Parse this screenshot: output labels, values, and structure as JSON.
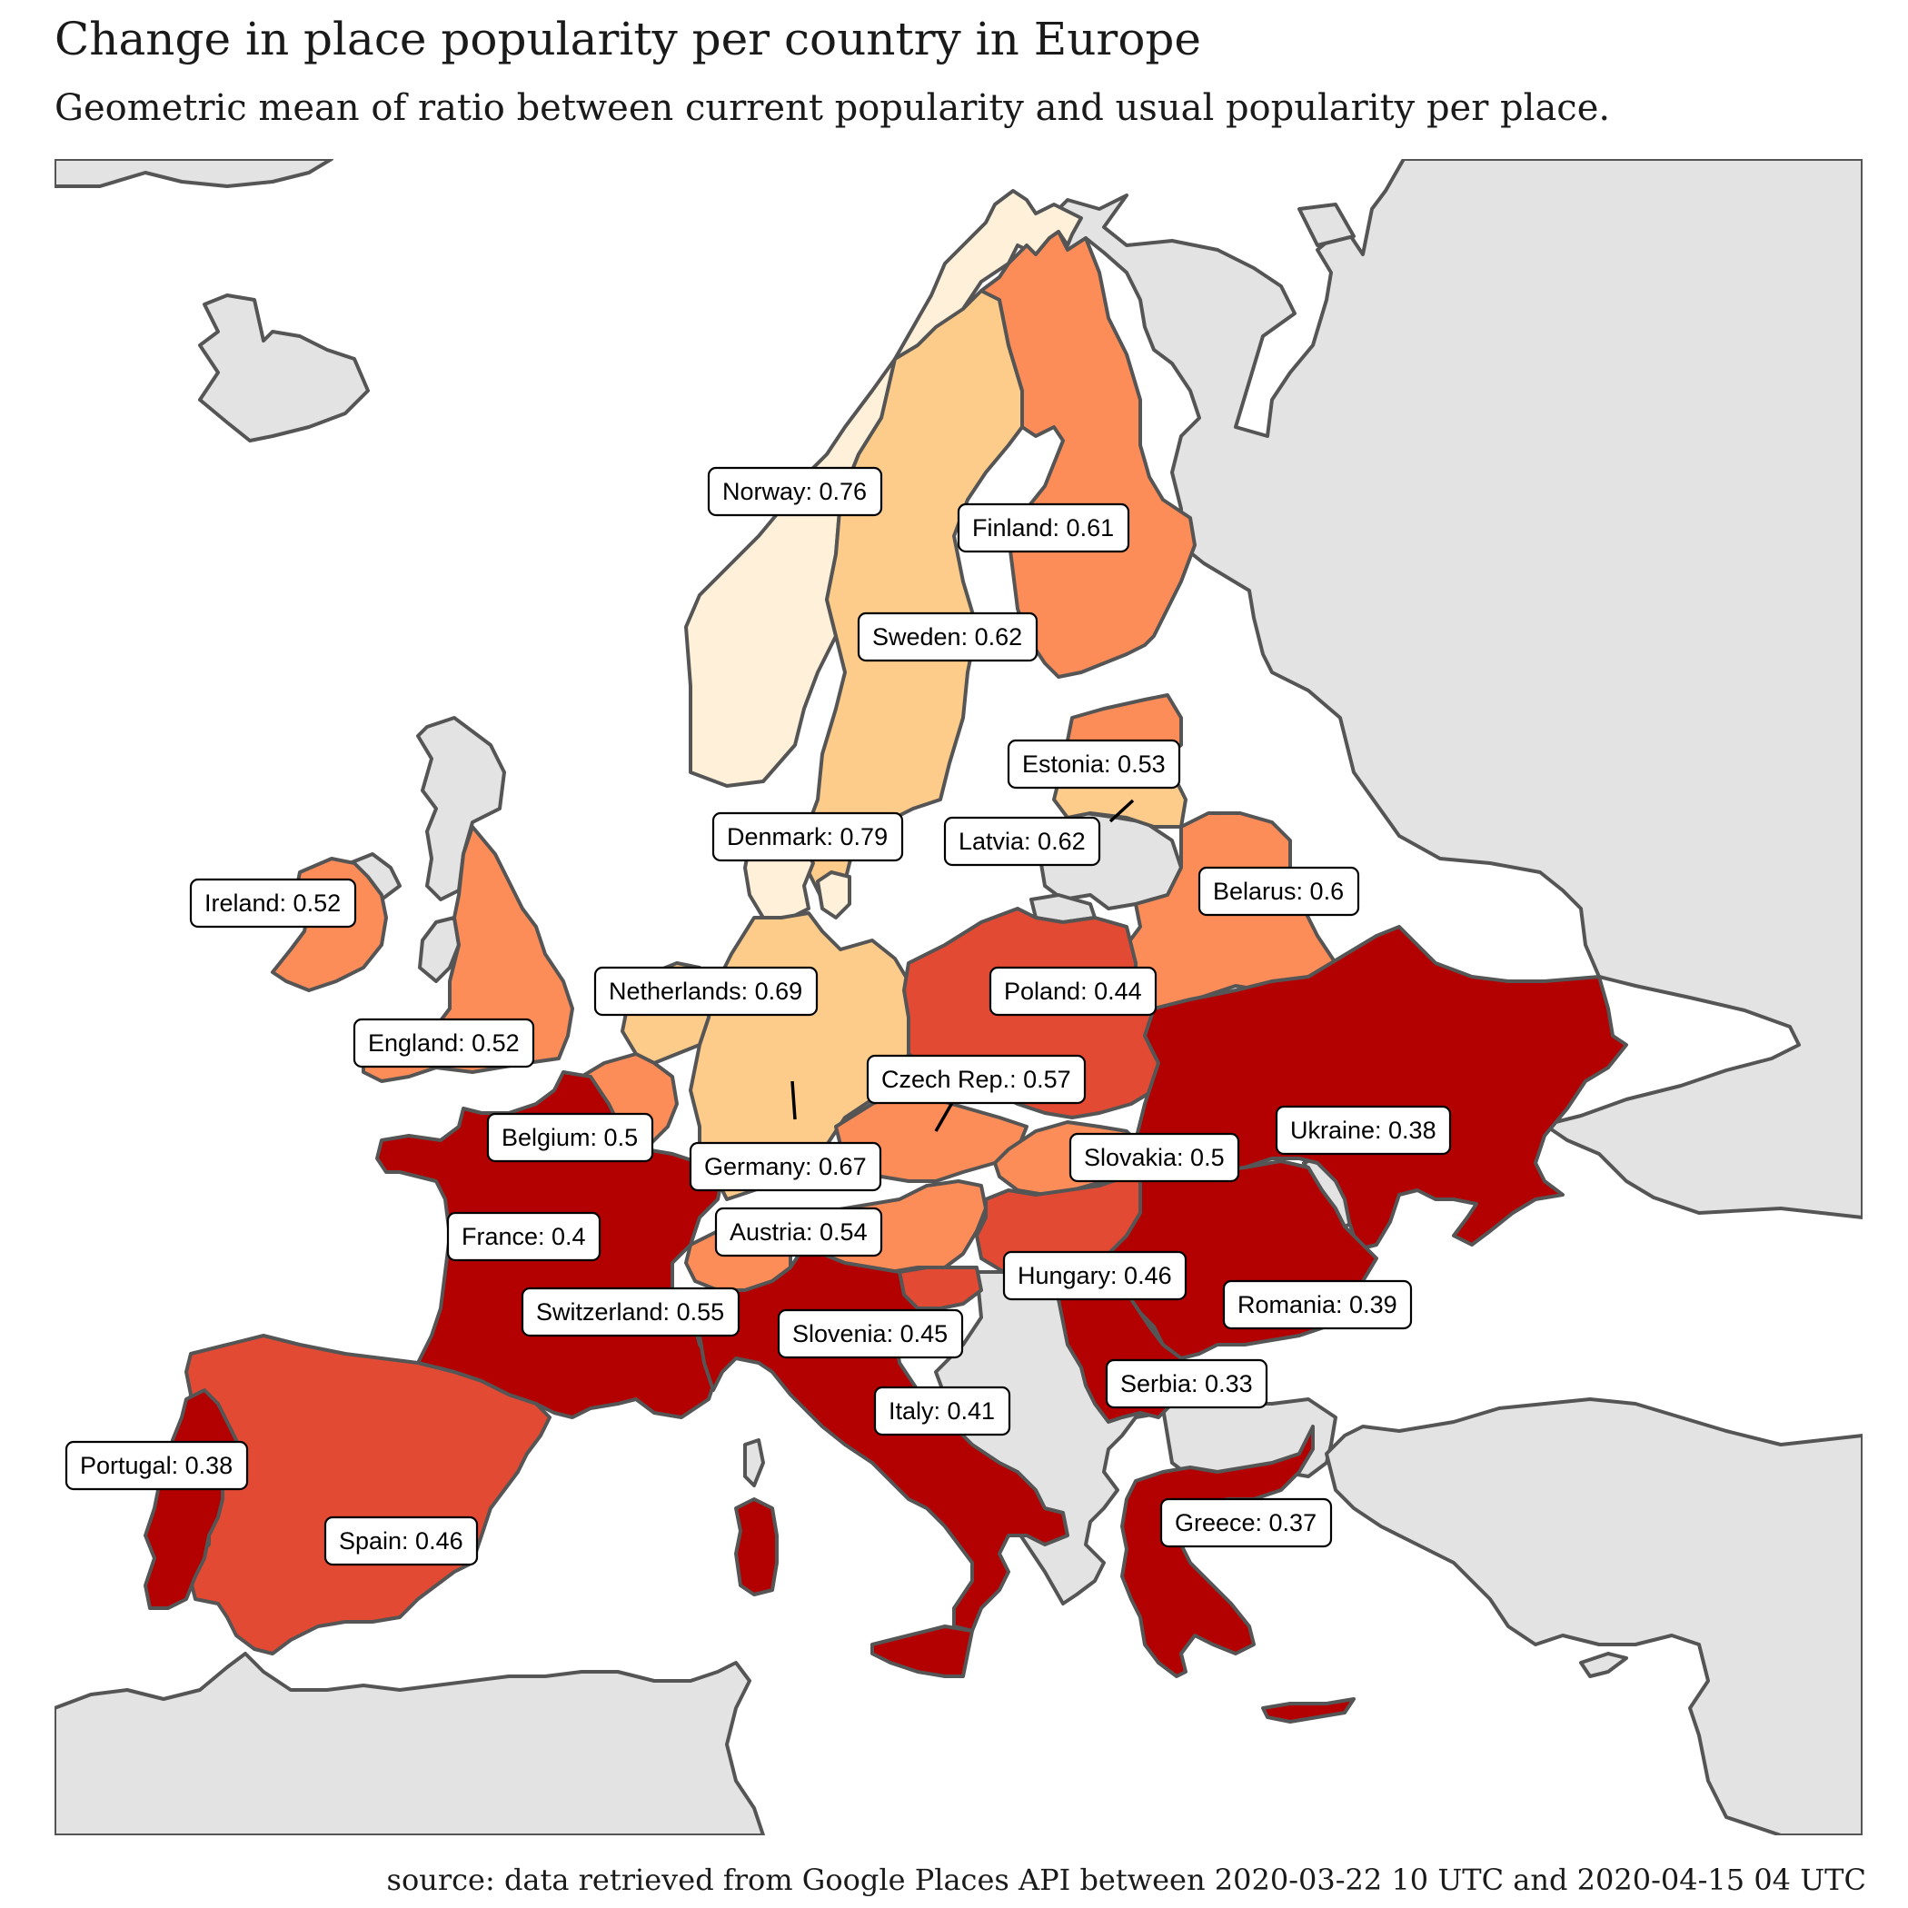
{
  "title": "Change in place popularity per country in Europe",
  "subtitle": "Geometric mean of ratio between current popularity and usual popularity per place.",
  "source": "source: data retrieved from Google Places API between 2020-03-22 10 UTC and 2020-04-15 04 UTC",
  "colors": {
    "water": "#ffffff",
    "land_no_data": "#e3e3e3",
    "border": "#555555",
    "scale": [
      "#b30000",
      "#e34a33",
      "#fc8d59",
      "#fdcc8a",
      "#fef0d9"
    ]
  },
  "chart_data": {
    "type": "choropleth",
    "countries": [
      {
        "name": "Norway",
        "value": 0.76,
        "label": "Norway: 0.76"
      },
      {
        "name": "Finland",
        "value": 0.61,
        "label": "Finland: 0.61"
      },
      {
        "name": "Sweden",
        "value": 0.62,
        "label": "Sweden: 0.62"
      },
      {
        "name": "Estonia",
        "value": 0.53,
        "label": "Estonia: 0.53"
      },
      {
        "name": "Latvia",
        "value": 0.62,
        "label": "Latvia: 0.62"
      },
      {
        "name": "Denmark",
        "value": 0.79,
        "label": "Denmark: 0.79"
      },
      {
        "name": "Belarus",
        "value": 0.6,
        "label": "Belarus: 0.6"
      },
      {
        "name": "Ireland",
        "value": 0.52,
        "label": "Ireland: 0.52"
      },
      {
        "name": "Netherlands",
        "value": 0.69,
        "label": "Netherlands: 0.69"
      },
      {
        "name": "Poland",
        "value": 0.44,
        "label": "Poland: 0.44"
      },
      {
        "name": "England",
        "value": 0.52,
        "label": "England: 0.52"
      },
      {
        "name": "Czech Rep.",
        "value": 0.57,
        "label": "Czech Rep.: 0.57"
      },
      {
        "name": "Belgium",
        "value": 0.5,
        "label": "Belgium: 0.5"
      },
      {
        "name": "Germany",
        "value": 0.67,
        "label": "Germany: 0.67"
      },
      {
        "name": "Slovakia",
        "value": 0.5,
        "label": "Slovakia: 0.5"
      },
      {
        "name": "Ukraine",
        "value": 0.38,
        "label": "Ukraine: 0.38"
      },
      {
        "name": "France",
        "value": 0.4,
        "label": "France: 0.4"
      },
      {
        "name": "Austria",
        "value": 0.54,
        "label": "Austria: 0.54"
      },
      {
        "name": "Hungary",
        "value": 0.46,
        "label": "Hungary: 0.46"
      },
      {
        "name": "Switzerland",
        "value": 0.55,
        "label": "Switzerland: 0.55"
      },
      {
        "name": "Romania",
        "value": 0.39,
        "label": "Romania: 0.39"
      },
      {
        "name": "Slovenia",
        "value": 0.45,
        "label": "Slovenia: 0.45"
      },
      {
        "name": "Serbia",
        "value": 0.33,
        "label": "Serbia: 0.33"
      },
      {
        "name": "Italy",
        "value": 0.41,
        "label": "Italy: 0.41"
      },
      {
        "name": "Portugal",
        "value": 0.38,
        "label": "Portugal: 0.38"
      },
      {
        "name": "Greece",
        "value": 0.37,
        "label": "Greece: 0.37"
      },
      {
        "name": "Spain",
        "value": 0.46,
        "label": "Spain: 0.46"
      }
    ]
  }
}
